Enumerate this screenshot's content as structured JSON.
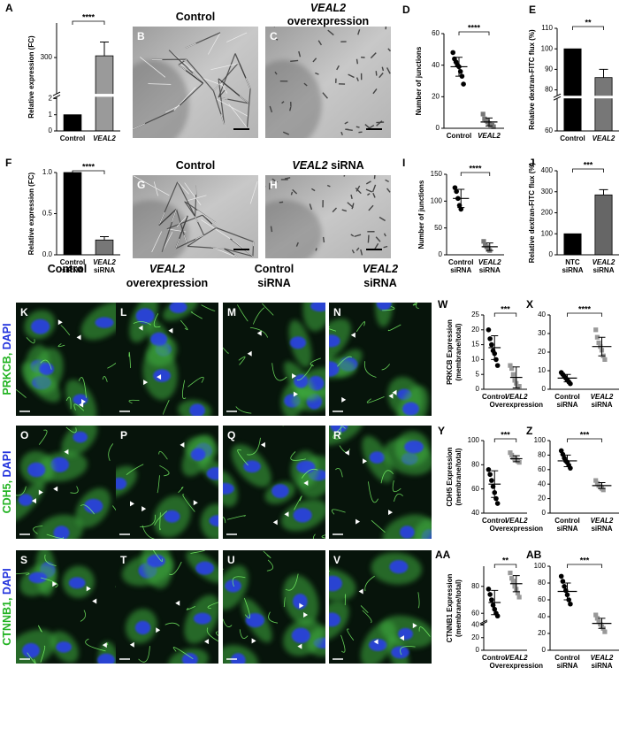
{
  "images": [
    {
      "label": "B",
      "title": [
        "Control"
      ]
    },
    {
      "label": "C",
      "title": [
        "VEAL2",
        "overexpression"
      ]
    },
    {
      "label": "G",
      "title": [
        "Control"
      ]
    },
    {
      "label": "H",
      "title": [
        "VEAL2 siRNA"
      ]
    }
  ],
  "grid": {
    "columns": [
      [
        "Control"
      ],
      [
        "VEAL2",
        "overexpression"
      ],
      [
        "Control",
        "siRNA"
      ],
      [
        "VEAL2",
        "siRNA"
      ]
    ],
    "rows": [
      "PRKCB, DAPI",
      "CDH5, DAPI",
      "CTNNB1, DAPI"
    ],
    "labels": [
      [
        "K",
        "L",
        "M",
        "N"
      ],
      [
        "O",
        "P",
        "Q",
        "R"
      ],
      [
        "S",
        "T",
        "U",
        "V"
      ]
    ]
  },
  "chart_data": [
    {
      "label": "A",
      "type": "bar",
      "ylabel": [
        "Relative expression (FC)"
      ],
      "categories": [
        "Control",
        "VEAL2"
      ],
      "values": [
        1,
        305
      ],
      "errors": [
        0,
        40
      ],
      "colors": [
        "#000000",
        "#9a9a9a"
      ],
      "ylim": [
        0,
        400
      ],
      "y_break": [
        2,
        200
      ],
      "yticks": [
        0,
        1,
        2,
        300
      ],
      "annotation": "****"
    },
    {
      "label": "D",
      "type": "scatter",
      "ylabel": [
        "Number of junctions"
      ],
      "categories": [
        "Control",
        "VEAL2"
      ],
      "points": [
        [
          48,
          44,
          42,
          40,
          39,
          36,
          33,
          28
        ],
        [
          9,
          6,
          5,
          4,
          3,
          2,
          2,
          1
        ]
      ],
      "means": [
        39,
        4
      ],
      "sd": [
        6,
        2.5
      ],
      "colors": [
        "#000000",
        "#777777"
      ],
      "markers": [
        "circle",
        "square"
      ],
      "ylim": [
        0,
        60
      ],
      "yticks": [
        0,
        20,
        40,
        60
      ],
      "annotation": "****"
    },
    {
      "label": "E",
      "type": "bar",
      "ylabel": [
        "Relative dextran-FITC flux (%)"
      ],
      "categories": [
        "Control",
        "VEAL2"
      ],
      "values": [
        100,
        86
      ],
      "errors": [
        0,
        4
      ],
      "colors": [
        "#000000",
        "#777777"
      ],
      "ylim": [
        60,
        110
      ],
      "y_break": [
        62,
        78
      ],
      "yticks": [
        60,
        80,
        90,
        100,
        110
      ],
      "annotation": "**"
    },
    {
      "label": "F",
      "type": "bar",
      "ylabel": [
        "Relative expression (FC)"
      ],
      "categories": [
        "Control siRNA",
        "VEAL2 siRNA"
      ],
      "values": [
        1,
        0.18
      ],
      "errors": [
        0,
        0.04
      ],
      "colors": [
        "#000000",
        "#777777"
      ],
      "ylim": [
        0,
        1
      ],
      "yticks": [
        {
          "value": 0,
          "label": "0.0"
        },
        {
          "value": 0.5,
          "label": "0.5"
        },
        {
          "value": 1,
          "label": "1.0"
        }
      ],
      "annotation": "****"
    },
    {
      "label": "I",
      "type": "scatter",
      "ylabel": [
        "Number of junctions"
      ],
      "categories": [
        "Control siRNA",
        "VEAL2 siRNA"
      ],
      "points": [
        [
          125,
          118,
          105,
          92,
          85
        ],
        [
          25,
          18,
          15,
          10,
          8
        ]
      ],
      "means": [
        105,
        15
      ],
      "sd": [
        17,
        7
      ],
      "colors": [
        "#000000",
        "#777777"
      ],
      "markers": [
        "circle",
        "square"
      ],
      "ylim": [
        0,
        150
      ],
      "yticks": [
        0,
        50,
        100,
        150
      ],
      "annotation": "****"
    },
    {
      "label": "J",
      "type": "bar",
      "ylabel": [
        "Relative dextran-FITC flux (%)"
      ],
      "categories": [
        "NTC siRNA",
        "VEAL2 siRNA"
      ],
      "values": [
        100,
        285
      ],
      "errors": [
        0,
        25
      ],
      "colors": [
        "#000000",
        "#666666"
      ],
      "ylim": [
        0,
        400
      ],
      "yticks": [
        0,
        100,
        200,
        300,
        400
      ],
      "annotation": "***"
    },
    {
      "label": "W",
      "type": "scatter",
      "ylabel": [
        "PRKCB Expression",
        "(membrane/total)"
      ],
      "categories": [
        "Control",
        "VEAL2 Overexpression"
      ],
      "points": [
        [
          20,
          17,
          15,
          13,
          12,
          10,
          8
        ],
        [
          8,
          7,
          5,
          3,
          2,
          1,
          1
        ]
      ],
      "means": [
        14,
        4
      ],
      "sd": [
        4,
        3.5
      ],
      "colors": [
        "#000000",
        "#999999"
      ],
      "markers": [
        "circle",
        "square"
      ],
      "ylim": [
        0,
        25
      ],
      "yticks": [
        0,
        5,
        10,
        15,
        20,
        25
      ],
      "annotation": "***"
    },
    {
      "label": "X",
      "type": "scatter",
      "categories": [
        "Control siRNA",
        "VEAL2 siRNA"
      ],
      "points": [
        [
          9,
          8,
          7,
          6,
          5,
          4,
          3
        ],
        [
          32,
          28,
          25,
          23,
          21,
          18,
          16
        ]
      ],
      "means": [
        6,
        23
      ],
      "sd": [
        2,
        5
      ],
      "colors": [
        "#000000",
        "#999999"
      ],
      "markers": [
        "circle",
        "square"
      ],
      "ylim": [
        0,
        40
      ],
      "yticks": [
        0,
        10,
        20,
        30,
        40
      ],
      "annotation": "****"
    },
    {
      "label": "Y",
      "type": "scatter",
      "ylabel": [
        "CDH5 Expression",
        "(membrane/total)"
      ],
      "categories": [
        "Control",
        "VEAL2 Overexpression"
      ],
      "points": [
        [
          76,
          72,
          67,
          62,
          57,
          52,
          48
        ],
        [
          90,
          88,
          86,
          85,
          84,
          83,
          82
        ]
      ],
      "means": [
        64,
        85
      ],
      "sd": [
        11,
        2.5
      ],
      "colors": [
        "#000000",
        "#999999"
      ],
      "markers": [
        "circle",
        "square"
      ],
      "ylim": [
        40,
        100
      ],
      "yticks": [
        40,
        60,
        80,
        100
      ],
      "annotation": "***"
    },
    {
      "label": "Z",
      "type": "scatter",
      "categories": [
        "Control siRNA",
        "VEAL2 siRNA"
      ],
      "points": [
        [
          86,
          81,
          76,
          72,
          70,
          66,
          62
        ],
        [
          45,
          41,
          38,
          36,
          34,
          32
        ]
      ],
      "means": [
        72,
        38
      ],
      "sd": [
        8,
        4
      ],
      "colors": [
        "#000000",
        "#999999"
      ],
      "markers": [
        "circle",
        "square"
      ],
      "ylim": [
        0,
        100
      ],
      "yticks": [
        0,
        20,
        40,
        60,
        80,
        100
      ],
      "annotation": "***"
    },
    {
      "label": "AA",
      "type": "scatter",
      "ylabel": [
        "CTNNB1 Expression",
        "(membrane/total)"
      ],
      "categories": [
        "Control",
        "VEAL2 Overexpression"
      ],
      "points": [
        [
          78,
          74,
          70,
          66,
          63,
          60,
          58
        ],
        [
          90,
          86,
          84,
          80,
          78,
          75,
          72
        ]
      ],
      "means": [
        68,
        82
      ],
      "sd": [
        9,
        6
      ],
      "colors": [
        "#000000",
        "#999999"
      ],
      "markers": [
        "circle",
        "square"
      ],
      "ylim": [
        0,
        95
      ],
      "y_break": [
        40,
        55
      ],
      "yticks": [
        0,
        20,
        40,
        60,
        80
      ],
      "annotation": "**"
    },
    {
      "label": "AB",
      "type": "scatter",
      "categories": [
        "Control siRNA",
        "VEAL2 siRNA"
      ],
      "points": [
        [
          88,
          82,
          76,
          71,
          66,
          60,
          55
        ],
        [
          42,
          38,
          34,
          31,
          28,
          26,
          22
        ]
      ],
      "means": [
        70,
        32
      ],
      "sd": [
        10,
        6
      ],
      "colors": [
        "#000000",
        "#999999"
      ],
      "markers": [
        "circle",
        "square"
      ],
      "ylim": [
        0,
        100
      ],
      "yticks": [
        0,
        20,
        40,
        60,
        80,
        100
      ],
      "annotation": "***"
    }
  ]
}
